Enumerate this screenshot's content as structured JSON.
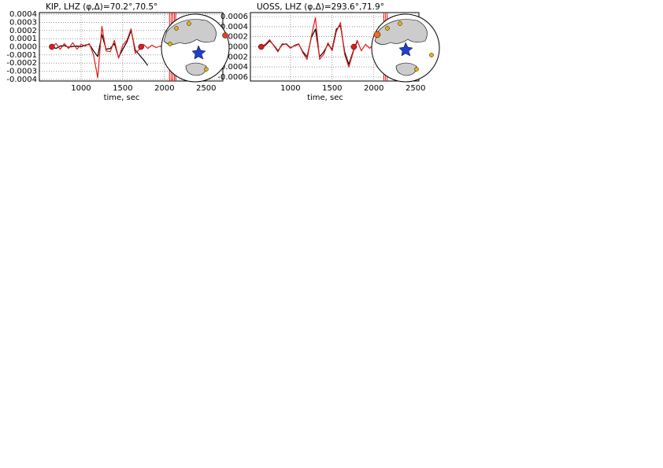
{
  "chart_data": [
    {
      "type": "line",
      "title": "KIP, LHZ (φ,Δ)=70.2°,70.5°",
      "xlabel": "time, sec",
      "xlim": [
        500,
        2700
      ],
      "ylim": [
        -0.00042,
        0.00042
      ],
      "grid": true,
      "xticks": [
        1000,
        1500,
        2000,
        2500
      ],
      "yticks": [
        {
          "value": 0.0004,
          "label": "0.0004"
        },
        {
          "value": 0.0003,
          "label": "0.0003"
        },
        {
          "value": 0.0002,
          "label": "0.0002"
        },
        {
          "value": 0.0001,
          "label": "0.0001"
        },
        {
          "value": 0,
          "label": "0.0000"
        },
        {
          "value": -0.0001,
          "label": "-0.0001"
        },
        {
          "value": -0.0002,
          "label": "-0.0002"
        },
        {
          "value": -0.0003,
          "label": "-0.0003"
        },
        {
          "value": -0.0004,
          "label": "-0.0004"
        }
      ],
      "series": [
        {
          "color": "#000000",
          "x": [
            650,
            700,
            750,
            800,
            850,
            900,
            950,
            1000,
            1050,
            1100,
            1150,
            1200,
            1250,
            1300,
            1350,
            1400,
            1450,
            1500,
            1550,
            1600,
            1650,
            1700,
            1750,
            1800
          ],
          "values": [
            0,
            -2e-05,
            1e-05,
            1.5e-05,
            -5e-06,
            5e-06,
            1e-05,
            0,
            2e-05,
            3e-05,
            -5e-05,
            -0.00012,
            0.00015,
            -3e-05,
            -2e-05,
            4e-05,
            -0.00013,
            -3e-05,
            6e-05,
            0.0002,
            -4e-05,
            -0.0001,
            -0.00016,
            -0.00023
          ]
        },
        {
          "color": "#e41a1c",
          "x": [
            650,
            700,
            750,
            800,
            850,
            900,
            950,
            1000,
            1050,
            1100,
            1150,
            1200,
            1250,
            1300,
            1350,
            1400,
            1450,
            1500,
            1550,
            1600,
            1650,
            1700,
            1750,
            1800,
            1850,
            1900,
            1950,
            2000,
            2050
          ],
          "values": [
            0,
            4e-05,
            -3e-05,
            4e-05,
            -2e-05,
            5e-05,
            -3e-05,
            3e-05,
            1e-05,
            4e-05,
            -0.0001,
            -0.00038,
            0.00025,
            -5e-05,
            -6e-05,
            8e-05,
            -0.00014,
            2e-05,
            8e-05,
            0.00022,
            -8e-05,
            -3e-05,
            3e-05,
            -2e-05,
            2e-05,
            -1e-05,
            1e-05,
            0,
            0
          ]
        }
      ],
      "window_marks": {
        "color": "#e41a1c",
        "x": [
          650,
          1720
        ],
        "values": [
          0,
          0
        ]
      },
      "vlines": {
        "color": "#e41a1c",
        "x": [
          2060,
          2080,
          2100,
          2120,
          2135
        ]
      }
    },
    {
      "type": "line",
      "title": "UOSS, LHZ (φ,Δ)=293.6°,71.9°",
      "xlabel": "time, sec",
      "xlim": [
        520,
        2540
      ],
      "ylim": [
        -0.00068,
        0.00068
      ],
      "grid": true,
      "xticks": [
        1000,
        1500,
        2000,
        2500
      ],
      "yticks": [
        {
          "value": 0.0006,
          "label": "0.0006"
        },
        {
          "value": 0.0004,
          "label": "0.0004"
        },
        {
          "value": 0.0002,
          "label": "0.0002"
        },
        {
          "value": 0,
          "label": "0.0000"
        },
        {
          "value": -0.0002,
          "label": "-0.0002"
        },
        {
          "value": -0.0004,
          "label": "-0.0004"
        },
        {
          "value": -0.0006,
          "label": "-0.0006"
        }
      ],
      "series": [
        {
          "color": "#000000",
          "x": [
            650,
            700,
            750,
            800,
            850,
            900,
            950,
            1000,
            1050,
            1100,
            1150,
            1200,
            1250,
            1300,
            1350,
            1400,
            1450,
            1500,
            1550,
            1600,
            1650,
            1700,
            1750,
            1800
          ],
          "values": [
            0,
            3e-05,
            0.00012,
            3e-05,
            -8e-05,
            4e-05,
            6e-05,
            -2e-05,
            2e-05,
            5e-05,
            -0.0001,
            -0.0002,
            0.00018,
            0.00035,
            -0.0002,
            -0.0001,
            5e-05,
            -5e-05,
            0.00035,
            0.00042,
            -0.0001,
            -0.00035,
            -0.0001,
            0.0001
          ]
        },
        {
          "color": "#e41a1c",
          "x": [
            650,
            700,
            750,
            800,
            850,
            900,
            950,
            1000,
            1050,
            1100,
            1150,
            1200,
            1250,
            1300,
            1350,
            1400,
            1450,
            1500,
            1550,
            1600,
            1650,
            1700,
            1750,
            1800,
            1850,
            1900,
            1950,
            2000,
            2050,
            2100
          ],
          "values": [
            0,
            5e-05,
            0.00014,
            2e-05,
            -0.0001,
            6e-05,
            5e-05,
            -3e-05,
            3e-05,
            6e-05,
            -0.00012,
            -0.00025,
            0.0002,
            0.00058,
            -0.00025,
            -0.00015,
            8e-05,
            -8e-05,
            0.0003,
            0.00048,
            -0.00015,
            -0.0004,
            -0.00012,
            0.00013,
            -8e-05,
            5e-05,
            -3e-05,
            6e-05,
            0.0001,
            5e-05
          ]
        }
      ],
      "window_marks": {
        "color": "#e41a1c",
        "x": [
          650,
          1760
        ],
        "values": [
          0,
          0
        ]
      },
      "vlines": {
        "color": "#e41a1c",
        "x": [
          2120,
          2140,
          2160
        ]
      }
    }
  ]
}
